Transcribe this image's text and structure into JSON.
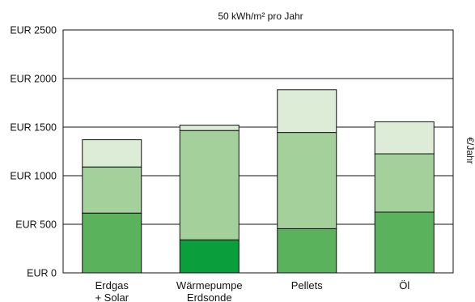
{
  "chart_data": {
    "type": "bar",
    "stacked": true,
    "title": "50 kWh/m² pro Jahr",
    "xlabel": "",
    "ylabel": "€/Jahr",
    "ylim": [
      0,
      2500
    ],
    "yticks": [
      0,
      500,
      1000,
      1500,
      2000,
      2500
    ],
    "ytick_labels": [
      "EUR 0",
      "EUR 500",
      "EUR 1000",
      "EUR 1500",
      "EUR 2000",
      "EUR 2500"
    ],
    "grid": "horizontal",
    "categories": [
      [
        "Erdgas",
        "+ Solar"
      ],
      [
        "Wärmepumpe",
        "Erdsonde"
      ],
      [
        "Pellets"
      ],
      [
        "Öl"
      ]
    ],
    "series": [
      {
        "values": [
          615,
          340,
          455,
          625
        ]
      },
      {
        "values": [
          475,
          1125,
          990,
          600
        ]
      },
      {
        "values": [
          280,
          55,
          440,
          330
        ]
      }
    ],
    "totals": [
      1370,
      1520,
      1885,
      1555
    ],
    "colors": {
      "segment_fill": [
        [
          "#5bb25d",
          "#a4d19b",
          "#ddecd7"
        ],
        [
          "#0a9e3c",
          "#a4d19b",
          "#ddecd7"
        ],
        [
          "#5bb25d",
          "#a4d19b",
          "#ddecd7"
        ],
        [
          "#5bb25d",
          "#a4d19b",
          "#ddecd7"
        ]
      ],
      "outline": "#111111",
      "axis": "#111111"
    }
  }
}
